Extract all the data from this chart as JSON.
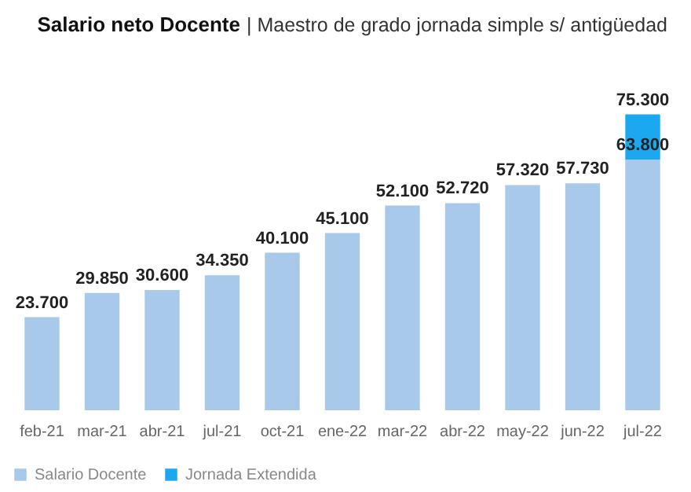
{
  "chart_data": {
    "type": "bar",
    "stacked": true,
    "title": "Salario neto Docente",
    "subtitle": "| Maestro de grado jornada simple s/ antigüedad",
    "categories": [
      "feb-21",
      "mar-21",
      "abr-21",
      "jul-21",
      "oct-21",
      "ene-22",
      "mar-22",
      "abr-22",
      "may-22",
      "jun-22",
      "jul-22"
    ],
    "series": [
      {
        "name": "Salario Docente",
        "color": "#a9c9ea",
        "values": [
          23700,
          29850,
          30600,
          34350,
          40100,
          45100,
          52100,
          52720,
          57320,
          57730,
          63800
        ],
        "value_labels": [
          "23.700",
          "29.850",
          "30.600",
          "34.350",
          "40.100",
          "45.100",
          "52.100",
          "52.720",
          "57.320",
          "57.730",
          "63.800"
        ]
      },
      {
        "name": "Jornada Extendida",
        "color": "#1ca8f0",
        "values": [
          null,
          null,
          null,
          null,
          null,
          null,
          null,
          null,
          null,
          null,
          11500
        ]
      }
    ],
    "totals": [
      null,
      null,
      null,
      null,
      null,
      null,
      null,
      null,
      null,
      null,
      "75.300"
    ],
    "legend": "bottom",
    "grid": false
  }
}
